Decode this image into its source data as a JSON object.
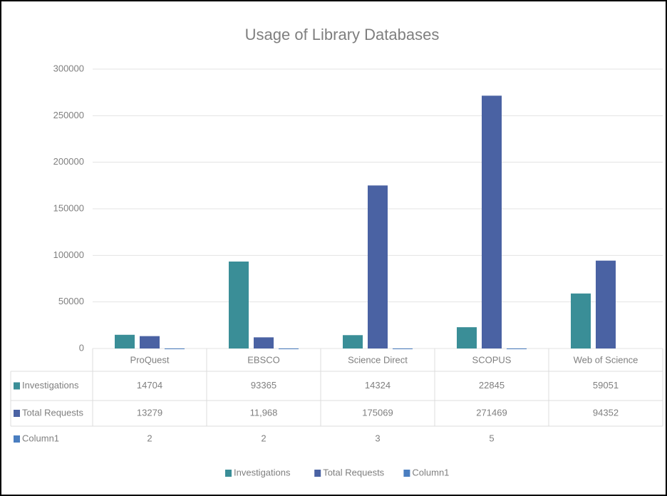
{
  "chart_data": {
    "type": "bar",
    "title": "Usage of Library Databases",
    "categories": [
      "ProQuest",
      "EBSCO",
      "Science Direct",
      "SCOPUS",
      "Web of Science"
    ],
    "series": [
      {
        "name": "Investigations",
        "color": "#3a8e97",
        "values": [
          14704,
          93365,
          14324,
          22845,
          59051
        ]
      },
      {
        "name": "Total Requests",
        "color": "#4a62a3",
        "values": [
          13279,
          11968,
          175069,
          271469,
          94352
        ],
        "value_labels": [
          "13279",
          "11,968",
          "175069",
          "271469",
          "94352"
        ]
      },
      {
        "name": "Column1",
        "color": "#4a7ec0",
        "values": [
          2,
          2,
          3,
          5,
          null
        ]
      }
    ],
    "ylim": [
      0,
      300000
    ],
    "yticks": [
      0,
      50000,
      100000,
      150000,
      200000,
      250000,
      300000
    ],
    "grid": true,
    "legend": "bottom"
  }
}
